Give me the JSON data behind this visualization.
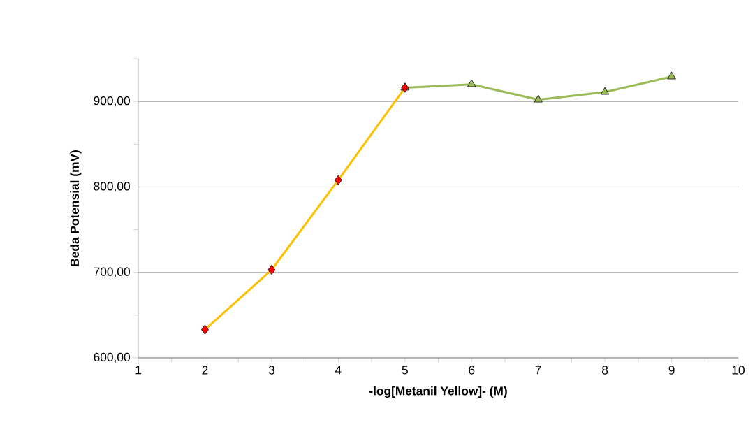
{
  "chart_data": {
    "type": "line",
    "xlabel": "-log[Metanil Yellow]- (M)",
    "ylabel": "Beda Potensial (mV)",
    "xlim": [
      1,
      10
    ],
    "ylim": [
      600,
      950
    ],
    "xticks": [
      1,
      {
        "value": 1.5,
        "label": null
      },
      2,
      {
        "value": 2.5,
        "label": null
      },
      3,
      {
        "value": 3.5,
        "label": null
      },
      4,
      {
        "value": 4.5,
        "label": null
      },
      5,
      {
        "value": 5.5,
        "label": null
      },
      6,
      {
        "value": 6.5,
        "label": null
      },
      7,
      {
        "value": 7.5,
        "label": null
      },
      8,
      {
        "value": 8.5,
        "label": null
      },
      9,
      {
        "value": 9.5,
        "label": null
      },
      10
    ],
    "yticks": [
      {
        "value": 600,
        "label": "600,00"
      },
      {
        "value": 650,
        "label": null
      },
      {
        "value": 700,
        "label": "700,00"
      },
      {
        "value": 750,
        "label": null
      },
      {
        "value": 800,
        "label": "800,00"
      },
      {
        "value": 850,
        "label": null
      },
      {
        "value": 900,
        "label": "900,00"
      },
      {
        "value": 950,
        "label": null
      }
    ],
    "grid": "y",
    "series": [
      {
        "color": "#ffc000",
        "marker": "diamond",
        "x": [
          2,
          3,
          4,
          5
        ],
        "values": [
          633,
          703,
          808,
          916
        ]
      },
      {
        "color": "#9bbb59",
        "marker": "triangle",
        "x": [
          5,
          6,
          7,
          8,
          9
        ],
        "values": [
          916,
          920,
          902,
          911,
          929
        ]
      }
    ]
  }
}
